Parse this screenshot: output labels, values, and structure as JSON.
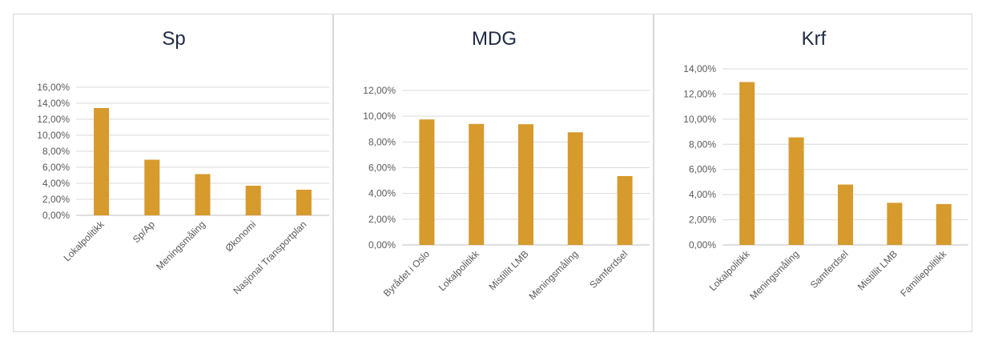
{
  "colors": {
    "bar": "#D69A2D",
    "grid": "#D9D9D9",
    "text": "#595959",
    "title": "#1F2A44"
  },
  "chart_data": [
    {
      "type": "bar",
      "title": "Sp",
      "categories": [
        "Lokalpolitikk",
        "Sp/Ap",
        "Meningsmåling",
        "Økonomi",
        "Nasjonal Transportplan"
      ],
      "values": [
        13.4,
        6.95,
        5.15,
        3.7,
        3.2
      ],
      "ylim": [
        0,
        16
      ],
      "yticks": [
        "0,00%",
        "2,00%",
        "4,00%",
        "6,00%",
        "8,00%",
        "10,00%",
        "12,00%",
        "14,00%",
        "16,00%"
      ],
      "grid": true
    },
    {
      "type": "bar",
      "title": "MDG",
      "categories": [
        "Byrådet i Oslo",
        "Lokalpolitikk",
        "Mistillit LMB",
        "Meningsmåling",
        "Samferdsel"
      ],
      "values": [
        9.75,
        9.4,
        9.38,
        8.75,
        5.35
      ],
      "ylim": [
        0,
        12
      ],
      "yticks": [
        "0,00%",
        "2,00%",
        "4,00%",
        "6,00%",
        "8,00%",
        "10,00%",
        "12,00%"
      ],
      "grid": true
    },
    {
      "type": "bar",
      "title": "Krf",
      "categories": [
        "Lokalpolitikk",
        "Meningsmåling",
        "Samferdsel",
        "Mistillit LMB",
        "Familiepolitikk"
      ],
      "values": [
        12.95,
        8.55,
        4.8,
        3.35,
        3.25
      ],
      "ylim": [
        0,
        14
      ],
      "yticks": [
        "0,00%",
        "2,00%",
        "4,00%",
        "6,00%",
        "8,00%",
        "10,00%",
        "12,00%",
        "14,00%"
      ],
      "grid": true
    }
  ]
}
